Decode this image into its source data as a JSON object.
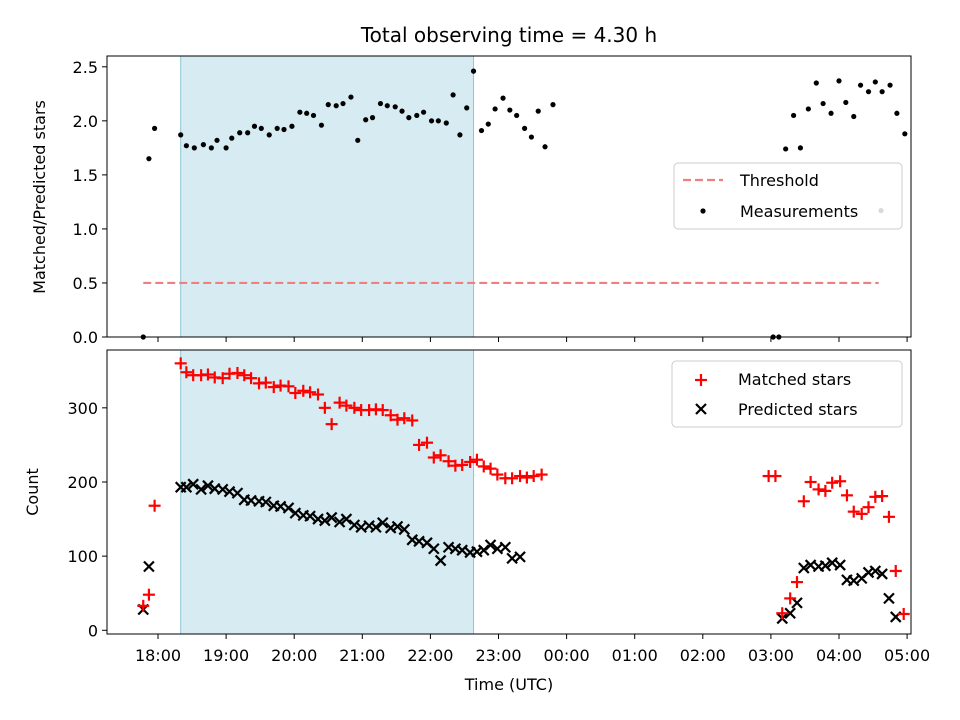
{
  "chart_data": [
    {
      "type": "scatter",
      "title": "Total observing time = 4.30 h",
      "xlabel": "",
      "ylabel": "Matched/Predicted stars",
      "ylim": [
        0,
        2.6
      ],
      "yticks": [
        "0.0",
        "0.5",
        "1.0",
        "1.5",
        "2.0",
        "2.5"
      ],
      "highlight_span": [
        "18:20",
        "22:38"
      ],
      "legend_position": "center-right",
      "threshold": {
        "name": "Threshold",
        "y": 0.5,
        "x_start": "17:47",
        "x_end": "04:35",
        "color": "#f08080"
      },
      "measurements": {
        "name": "Measurements",
        "color": "#000000",
        "points": [
          [
            "17:47",
            0.0
          ],
          [
            "17:52",
            1.65
          ],
          [
            "17:57",
            1.93
          ],
          [
            "18:20",
            1.87
          ],
          [
            "18:25",
            1.77
          ],
          [
            "18:32",
            1.75
          ],
          [
            "18:40",
            1.78
          ],
          [
            "18:47",
            1.75
          ],
          [
            "18:52",
            1.82
          ],
          [
            "19:00",
            1.75
          ],
          [
            "19:05",
            1.84
          ],
          [
            "19:12",
            1.89
          ],
          [
            "19:19",
            1.89
          ],
          [
            "19:25",
            1.95
          ],
          [
            "19:31",
            1.93
          ],
          [
            "19:38",
            1.87
          ],
          [
            "19:45",
            1.93
          ],
          [
            "19:51",
            1.92
          ],
          [
            "19:58",
            1.95
          ],
          [
            "20:05",
            2.08
          ],
          [
            "20:11",
            2.07
          ],
          [
            "20:17",
            2.05
          ],
          [
            "20:24",
            1.96
          ],
          [
            "20:30",
            2.15
          ],
          [
            "20:37",
            2.14
          ],
          [
            "20:43",
            2.16
          ],
          [
            "20:50",
            2.22
          ],
          [
            "20:56",
            1.82
          ],
          [
            "21:03",
            2.01
          ],
          [
            "21:09",
            2.03
          ],
          [
            "21:16",
            2.16
          ],
          [
            "21:22",
            2.14
          ],
          [
            "21:29",
            2.13
          ],
          [
            "21:35",
            2.09
          ],
          [
            "21:41",
            2.03
          ],
          [
            "21:48",
            2.05
          ],
          [
            "21:54",
            2.08
          ],
          [
            "22:01",
            2.0
          ],
          [
            "22:07",
            2.0
          ],
          [
            "22:14",
            1.98
          ],
          [
            "22:20",
            2.24
          ],
          [
            "22:26",
            1.87
          ],
          [
            "22:32",
            2.12
          ],
          [
            "22:38",
            2.46
          ],
          [
            "22:45",
            1.91
          ],
          [
            "22:51",
            1.97
          ],
          [
            "22:57",
            2.11
          ],
          [
            "23:04",
            2.21
          ],
          [
            "23:10",
            2.1
          ],
          [
            "23:16",
            2.05
          ],
          [
            "23:23",
            1.93
          ],
          [
            "23:29",
            1.85
          ],
          [
            "23:35",
            2.09
          ],
          [
            "23:41",
            1.76
          ],
          [
            "23:48",
            2.15
          ],
          [
            "03:02",
            0.0
          ],
          [
            "03:07",
            0.0
          ],
          [
            "03:13",
            1.74
          ],
          [
            "03:20",
            2.05
          ],
          [
            "03:26",
            1.75
          ],
          [
            "03:33",
            2.11
          ],
          [
            "03:40",
            2.35
          ],
          [
            "03:46",
            2.16
          ],
          [
            "03:53",
            2.07
          ],
          [
            "04:00",
            2.37
          ],
          [
            "04:06",
            2.17
          ],
          [
            "04:13",
            2.04
          ],
          [
            "04:19",
            2.33
          ],
          [
            "04:26",
            2.27
          ],
          [
            "04:32",
            2.36
          ],
          [
            "04:38",
            2.27
          ],
          [
            "04:45",
            2.33
          ],
          [
            "04:51",
            2.07
          ],
          [
            "04:58",
            1.88
          ],
          [
            "04:37",
            1.17
          ]
        ]
      }
    },
    {
      "type": "scatter",
      "title": "",
      "xlabel": "Time (UTC)",
      "ylabel": "Count",
      "ylim": [
        -5,
        378
      ],
      "yticks": [
        "0",
        "100",
        "200",
        "300"
      ],
      "xticks": [
        "18:00",
        "19:00",
        "20:00",
        "21:00",
        "22:00",
        "23:00",
        "00:00",
        "01:00",
        "02:00",
        "03:00",
        "04:00",
        "05:00"
      ],
      "highlight_span": [
        "18:20",
        "22:38"
      ],
      "legend_position": "upper right",
      "series": [
        {
          "name": "Matched stars",
          "marker": "plus",
          "color": "#ff0000",
          "points": [
            [
              "17:47",
              33
            ],
            [
              "17:52",
              48
            ],
            [
              "17:57",
              168
            ],
            [
              "18:20",
              360
            ],
            [
              "18:25",
              348
            ],
            [
              "18:31",
              344
            ],
            [
              "18:38",
              344
            ],
            [
              "18:44",
              345
            ],
            [
              "18:50",
              341
            ],
            [
              "18:57",
              340
            ],
            [
              "19:03",
              346
            ],
            [
              "19:10",
              347
            ],
            [
              "19:16",
              344
            ],
            [
              "19:22",
              340
            ],
            [
              "19:29",
              333
            ],
            [
              "19:35",
              334
            ],
            [
              "19:42",
              328
            ],
            [
              "19:48",
              330
            ],
            [
              "19:55",
              329
            ],
            [
              "20:01",
              320
            ],
            [
              "20:08",
              323
            ],
            [
              "20:14",
              321
            ],
            [
              "20:21",
              318
            ],
            [
              "20:27",
              300
            ],
            [
              "20:33",
              278
            ],
            [
              "20:40",
              307
            ],
            [
              "20:46",
              303
            ],
            [
              "20:53",
              300
            ],
            [
              "20:59",
              297
            ],
            [
              "21:06",
              297
            ],
            [
              "21:12",
              298
            ],
            [
              "21:18",
              297
            ],
            [
              "21:25",
              290
            ],
            [
              "21:31",
              284
            ],
            [
              "21:37",
              286
            ],
            [
              "21:44",
              283
            ],
            [
              "21:50",
              250
            ],
            [
              "21:57",
              253
            ],
            [
              "22:03",
              233
            ],
            [
              "22:09",
              236
            ],
            [
              "22:16",
              228
            ],
            [
              "22:22",
              222
            ],
            [
              "22:28",
              223
            ],
            [
              "22:35",
              227
            ],
            [
              "22:41",
              230
            ],
            [
              "22:47",
              221
            ],
            [
              "22:53",
              218
            ],
            [
              "22:59",
              210
            ],
            [
              "23:06",
              205
            ],
            [
              "23:12",
              205
            ],
            [
              "23:19",
              208
            ],
            [
              "23:25",
              206
            ],
            [
              "23:31",
              208
            ],
            [
              "23:38",
              210
            ],
            [
              "02:58",
              208
            ],
            [
              "03:04",
              208
            ],
            [
              "03:10",
              23
            ],
            [
              "03:17",
              43
            ],
            [
              "03:23",
              65
            ],
            [
              "03:29",
              174
            ],
            [
              "03:35",
              200
            ],
            [
              "03:42",
              190
            ],
            [
              "03:48",
              188
            ],
            [
              "03:54",
              199
            ],
            [
              "04:01",
              201
            ],
            [
              "04:07",
              182
            ],
            [
              "04:13",
              160
            ],
            [
              "04:20",
              157
            ],
            [
              "04:26",
              166
            ],
            [
              "04:32",
              180
            ],
            [
              "04:38",
              181
            ],
            [
              "04:44",
              153
            ],
            [
              "04:50",
              80
            ],
            [
              "04:57",
              22
            ]
          ]
        },
        {
          "name": "Predicted stars",
          "marker": "x",
          "color": "#000000",
          "points": [
            [
              "17:47",
              28
            ],
            [
              "17:52",
              86
            ],
            [
              "18:20",
              193
            ],
            [
              "18:25",
              193
            ],
            [
              "18:31",
              197
            ],
            [
              "18:38",
              190
            ],
            [
              "18:44",
              195
            ],
            [
              "18:50",
              191
            ],
            [
              "18:57",
              190
            ],
            [
              "19:03",
              187
            ],
            [
              "19:10",
              185
            ],
            [
              "19:16",
              176
            ],
            [
              "19:22",
              175
            ],
            [
              "19:29",
              174
            ],
            [
              "19:35",
              173
            ],
            [
              "19:42",
              168
            ],
            [
              "19:48",
              167
            ],
            [
              "19:55",
              165
            ],
            [
              "20:01",
              158
            ],
            [
              "20:08",
              155
            ],
            [
              "20:14",
              154
            ],
            [
              "20:21",
              150
            ],
            [
              "20:27",
              148
            ],
            [
              "20:33",
              152
            ],
            [
              "20:40",
              146
            ],
            [
              "20:46",
              150
            ],
            [
              "20:53",
              142
            ],
            [
              "20:59",
              139
            ],
            [
              "21:06",
              141
            ],
            [
              "21:12",
              139
            ],
            [
              "21:18",
              145
            ],
            [
              "21:25",
              138
            ],
            [
              "21:31",
              140
            ],
            [
              "21:37",
              136
            ],
            [
              "21:44",
              122
            ],
            [
              "21:50",
              120
            ],
            [
              "21:57",
              118
            ],
            [
              "22:03",
              110
            ],
            [
              "22:09",
              94
            ],
            [
              "22:16",
              112
            ],
            [
              "22:22",
              110
            ],
            [
              "22:28",
              108
            ],
            [
              "22:35",
              105
            ],
            [
              "22:41",
              106
            ],
            [
              "22:47",
              108
            ],
            [
              "22:53",
              115
            ],
            [
              "22:59",
              110
            ],
            [
              "23:06",
              112
            ],
            [
              "23:12",
              97
            ],
            [
              "23:19",
              99
            ],
            [
              "03:10",
              16
            ],
            [
              "03:17",
              23
            ],
            [
              "03:23",
              37
            ],
            [
              "03:29",
              84
            ],
            [
              "03:35",
              88
            ],
            [
              "03:42",
              86
            ],
            [
              "03:48",
              87
            ],
            [
              "03:54",
              91
            ],
            [
              "04:01",
              88
            ],
            [
              "04:07",
              68
            ],
            [
              "04:13",
              67
            ],
            [
              "04:20",
              70
            ],
            [
              "04:26",
              78
            ],
            [
              "04:32",
              80
            ],
            [
              "04:38",
              76
            ],
            [
              "04:44",
              43
            ],
            [
              "04:50",
              18
            ]
          ]
        }
      ]
    }
  ]
}
